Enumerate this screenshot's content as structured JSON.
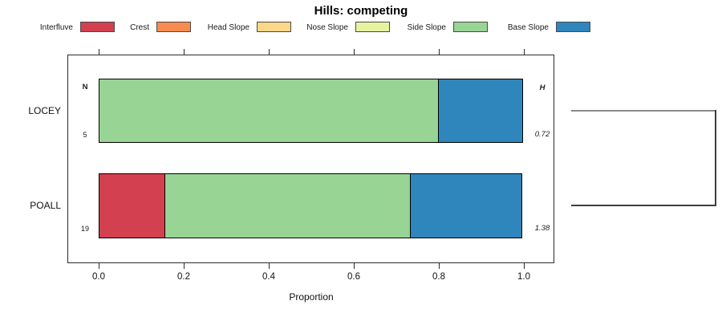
{
  "title": "Hills: competing",
  "legend": {
    "items": [
      {
        "label": "Interfluve",
        "color": "#D34050"
      },
      {
        "label": "Crest",
        "color": "#F78C50"
      },
      {
        "label": "Head Slope",
        "color": "#FCD787"
      },
      {
        "label": "Nose Slope",
        "color": "#E8F3A0"
      },
      {
        "label": "Side Slope",
        "color": "#98D494"
      },
      {
        "label": "Base Slope",
        "color": "#2F86BC"
      }
    ]
  },
  "chart_data": {
    "type": "bar",
    "subtype": "horizontal-stacked-proportion",
    "title": "Hills: competing",
    "xlabel": "Proportion",
    "xlim": [
      0,
      1
    ],
    "xticks": [
      0.0,
      0.2,
      0.4,
      0.6,
      0.8,
      1.0
    ],
    "grid": false,
    "legend_position": "top",
    "categories": [
      "LOCEY",
      "POALL"
    ],
    "series": [
      {
        "name": "Interfluve",
        "color": "#D34050",
        "values": [
          0,
          0.158
        ]
      },
      {
        "name": "Crest",
        "color": "#F78C50",
        "values": [
          0,
          0
        ]
      },
      {
        "name": "Head Slope",
        "color": "#FCD787",
        "values": [
          0,
          0
        ]
      },
      {
        "name": "Nose Slope",
        "color": "#E8F3A0",
        "values": [
          0,
          0
        ]
      },
      {
        "name": "Side Slope",
        "color": "#98D494",
        "values": [
          0.8,
          0.579
        ]
      },
      {
        "name": "Base Slope",
        "color": "#2F86BC",
        "values": [
          0.2,
          0.263
        ]
      }
    ],
    "annotations": {
      "n_header": "N",
      "h_header": "H",
      "n_values": [
        "5",
        "19"
      ],
      "h_values": [
        "0.72",
        "1.38"
      ]
    }
  }
}
